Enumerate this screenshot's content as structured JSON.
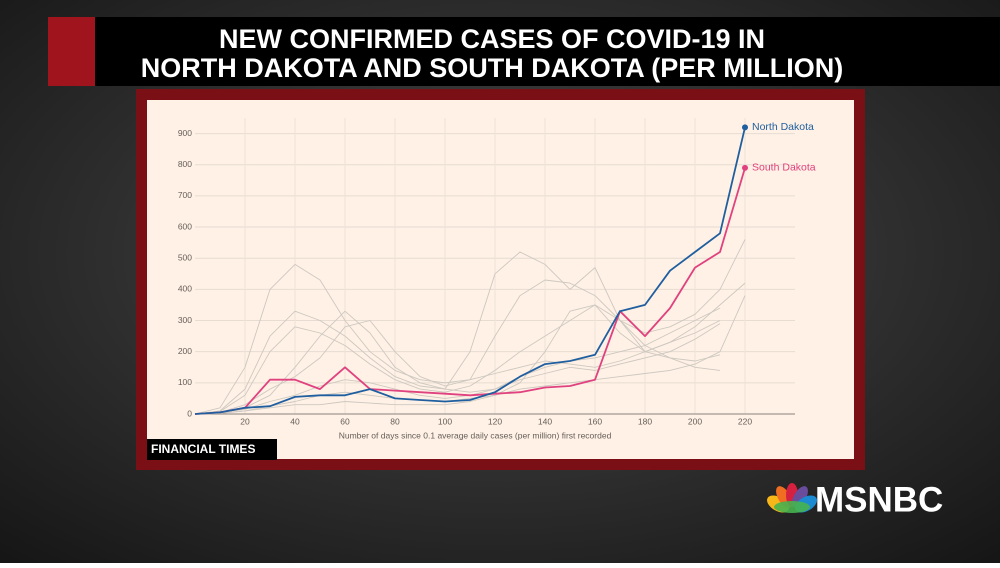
{
  "title_lines": [
    "NEW CONFIRMED CASES OF COVID-19 IN",
    "NORTH DAKOTA AND SOUTH DAKOTA (PER MILLION)"
  ],
  "source": "FINANCIAL TIMES",
  "network": "MSNBC",
  "chart_data": {
    "type": "line",
    "x_label": "Number of days since 0.1 average daily cases (per million) first recorded",
    "x": [
      0,
      10,
      20,
      30,
      40,
      50,
      60,
      70,
      80,
      90,
      100,
      110,
      120,
      130,
      140,
      150,
      160,
      170,
      180,
      190,
      200,
      210,
      220
    ],
    "xlim": [
      0,
      240
    ],
    "xticks": [
      20,
      40,
      60,
      80,
      100,
      120,
      140,
      160,
      180,
      200,
      220
    ],
    "ylim": [
      0,
      950
    ],
    "yticks": [
      0,
      100,
      200,
      300,
      400,
      500,
      600,
      700,
      800,
      900
    ],
    "grid": true,
    "series": [
      {
        "color": "#cdc8c0",
        "values": [
          0,
          20,
          150,
          400,
          480,
          430,
          300,
          200,
          140,
          110,
          100,
          110,
          130,
          150,
          170,
          160,
          150,
          170,
          200,
          230,
          260,
          300,
          null
        ]
      },
      {
        "color": "#cdc8c0",
        "values": [
          0,
          10,
          80,
          250,
          330,
          300,
          250,
          180,
          120,
          90,
          80,
          200,
          450,
          520,
          480,
          400,
          470,
          300,
          200,
          230,
          280,
          350,
          420
        ]
      },
      {
        "color": "#cdc8c0",
        "values": [
          0,
          5,
          30,
          80,
          120,
          180,
          280,
          300,
          200,
          120,
          90,
          110,
          250,
          380,
          430,
          420,
          380,
          300,
          260,
          280,
          320,
          400,
          560
        ]
      },
      {
        "color": "#cdc8c0",
        "values": [
          0,
          5,
          15,
          40,
          60,
          90,
          110,
          100,
          80,
          60,
          50,
          60,
          80,
          110,
          130,
          150,
          140,
          160,
          180,
          200,
          240,
          290,
          null
        ]
      },
      {
        "color": "#cdc8c0",
        "values": [
          0,
          2,
          10,
          25,
          40,
          60,
          70,
          60,
          50,
          45,
          40,
          50,
          60,
          80,
          90,
          100,
          110,
          120,
          130,
          140,
          160,
          200,
          380
        ]
      },
      {
        "color": "#cdc8c0",
        "values": [
          0,
          8,
          60,
          200,
          280,
          260,
          220,
          160,
          110,
          80,
          70,
          90,
          140,
          200,
          250,
          300,
          350,
          260,
          200,
          180,
          170,
          190,
          null
        ]
      },
      {
        "color": "#cdc8c0",
        "values": [
          0,
          3,
          10,
          20,
          30,
          30,
          40,
          35,
          30,
          30,
          30,
          40,
          60,
          100,
          200,
          330,
          350,
          300,
          220,
          180,
          150,
          140,
          null
        ]
      },
      {
        "color": "#cdc8c0",
        "values": [
          0,
          5,
          20,
          60,
          150,
          250,
          330,
          260,
          150,
          100,
          80,
          70,
          80,
          120,
          150,
          170,
          180,
          200,
          220,
          260,
          300,
          340,
          null
        ]
      },
      {
        "name": "South Dakota",
        "color": "#e0417f",
        "values": [
          0,
          5,
          20,
          110,
          110,
          80,
          150,
          80,
          75,
          70,
          65,
          60,
          65,
          70,
          85,
          90,
          110,
          330,
          250,
          340,
          470,
          520,
          790
        ]
      },
      {
        "name": "North Dakota",
        "color": "#1f5fa0",
        "values": [
          0,
          5,
          20,
          25,
          55,
          60,
          60,
          80,
          50,
          45,
          40,
          45,
          70,
          120,
          160,
          170,
          190,
          330,
          350,
          460,
          520,
          580,
          920
        ]
      }
    ]
  }
}
